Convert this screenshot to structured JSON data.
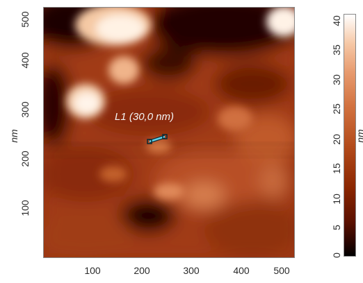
{
  "image": {
    "x_axis": {
      "label": "",
      "ticks": [
        "100",
        "200",
        "300",
        "400",
        "500"
      ]
    },
    "y_axis": {
      "label": "nm",
      "ticks": [
        "100",
        "200",
        "300",
        "400",
        "500"
      ]
    }
  },
  "measurement": {
    "label": "L1 (30,0 nm)",
    "color": "#5fd0e8"
  },
  "colorbar": {
    "unit": "nm",
    "ticks": [
      "0",
      "5",
      "10",
      "15",
      "20",
      "25",
      "30",
      "35",
      "40"
    ]
  },
  "colors": {
    "low": "#000000",
    "mid": "#b24a1a",
    "high": "#ffffff"
  }
}
